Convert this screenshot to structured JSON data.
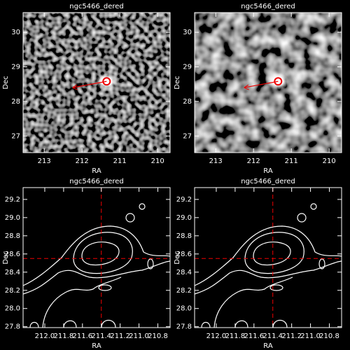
{
  "chart_data": [
    {
      "type": "image",
      "title": "ngc5466_dered",
      "xlabel": "RA",
      "ylabel": "Dec",
      "xlim": [
        213.56,
        209.67
      ],
      "ylim": [
        26.52,
        30.57
      ],
      "xticks": [
        213,
        212,
        211,
        210
      ],
      "yticks": [
        27,
        28,
        29,
        30
      ],
      "arrow": {
        "x": [
          212.25,
          211.35
        ],
        "y": [
          28.4,
          28.58
        ]
      }
    },
    {
      "type": "image",
      "title": "ngc5466_dered",
      "xlabel": "RA",
      "ylabel": "Dec",
      "xlim": [
        213.56,
        209.67
      ],
      "ylim": [
        26.52,
        30.57
      ],
      "xticks": [
        213,
        212,
        211,
        210
      ],
      "yticks": [
        27,
        28,
        29,
        30
      ],
      "arrow": {
        "x": [
          212.25,
          211.35
        ],
        "y": [
          28.4,
          28.58
        ]
      }
    },
    {
      "type": "contour",
      "title": "ngc5466_dered",
      "xlabel": "RA",
      "ylabel": "Dec",
      "xlim": [
        212.23,
        210.67
      ],
      "ylim": [
        27.79,
        29.33
      ],
      "xticks": [
        {
          "value": 212,
          "label": "212.0"
        },
        211.8,
        211.6,
        211.4,
        211.2,
        {
          "value": 211,
          "label": "211.0"
        },
        210.8
      ],
      "yticks": [
        27.8,
        {
          "value": 28,
          "label": "28.0"
        },
        28.2,
        28.4,
        28.6,
        28.8,
        {
          "value": 29,
          "label": "29.0"
        },
        29.2
      ],
      "crosshair": {
        "x": 211.4,
        "y": 28.55
      }
    },
    {
      "type": "contour",
      "title": "ngc5466_dered",
      "xlabel": "RA",
      "ylabel": "Dec",
      "xlim": [
        212.23,
        210.67
      ],
      "ylim": [
        27.79,
        29.33
      ],
      "xticks": [
        {
          "value": 212,
          "label": "212.0"
        },
        211.8,
        211.6,
        211.4,
        211.2,
        {
          "value": 211,
          "label": "211.0"
        },
        210.8
      ],
      "yticks": [
        27.8,
        {
          "value": 28,
          "label": "28.0"
        },
        28.2,
        28.4,
        28.6,
        28.8,
        {
          "value": 29,
          "label": "29.0"
        },
        29.2
      ],
      "crosshair": {
        "x": 211.4,
        "y": 28.55
      }
    }
  ]
}
